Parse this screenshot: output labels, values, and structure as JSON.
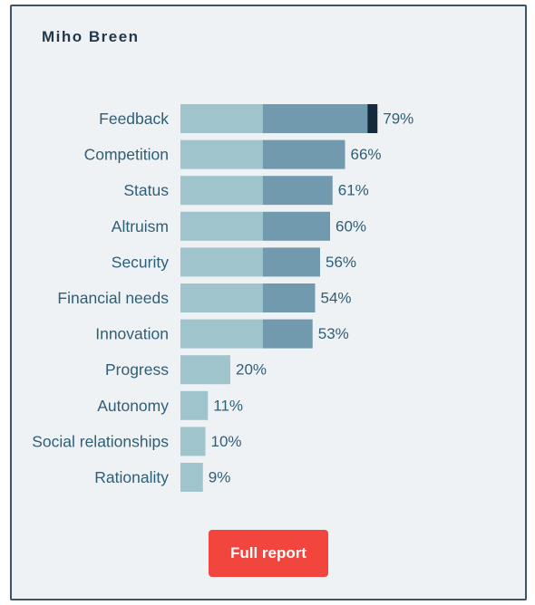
{
  "card": {
    "name": "Miho Breen",
    "button_label": "Full report"
  },
  "colors": {
    "segment_light": "#9fc4cb",
    "segment_mid": "#729aae",
    "segment_dark": "#152b3c",
    "label_text": "#2f5e78",
    "button": "#f2453d"
  },
  "chart_data": {
    "type": "bar",
    "orientation": "horizontal",
    "stacked": true,
    "categories": [
      "Feedback",
      "Competition",
      "Status",
      "Altruism",
      "Security",
      "Financial needs",
      "Innovation",
      "Progress",
      "Autonomy",
      "Social relationships",
      "Rationality"
    ],
    "values": [
      79,
      66,
      61,
      60,
      56,
      54,
      53,
      20,
      11,
      10,
      9
    ],
    "value_labels": [
      "79%",
      "66%",
      "61%",
      "60%",
      "56%",
      "54%",
      "53%",
      "20%",
      "11%",
      "10%",
      "9%"
    ],
    "segment_bounds": [
      33,
      75
    ],
    "xlim": [
      0,
      100
    ],
    "title": "",
    "xlabel": "",
    "ylabel": "",
    "grid": false,
    "legend": "none"
  }
}
